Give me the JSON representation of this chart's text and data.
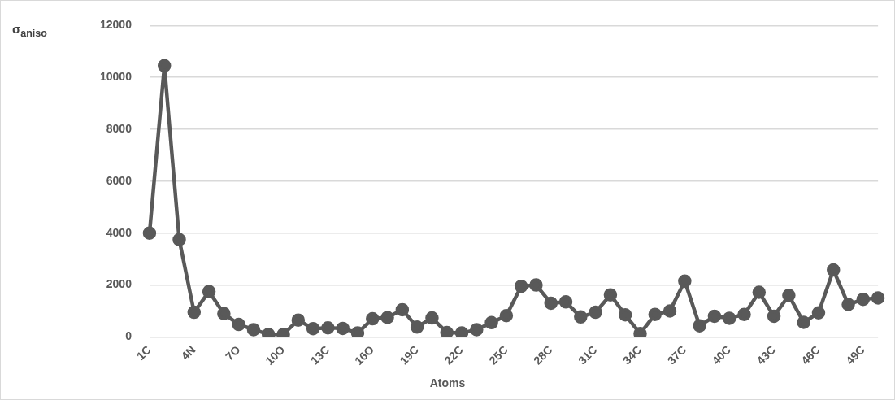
{
  "chart_data": {
    "type": "line",
    "ylabel": "σ$_{aniso}$",
    "xlabel": "Atoms",
    "categories": [
      "1C",
      null,
      null,
      "4N",
      null,
      null,
      "7O",
      null,
      null,
      "10O",
      null,
      null,
      "13C",
      null,
      null,
      "16O",
      null,
      null,
      "19C",
      null,
      null,
      "22C",
      null,
      null,
      "25C",
      null,
      null,
      "28C",
      null,
      null,
      "31C",
      null,
      null,
      "34C",
      null,
      null,
      "37C",
      null,
      null,
      "40C",
      null,
      null,
      "43C",
      null,
      null,
      "46C",
      null,
      null,
      "49C",
      null
    ],
    "series": [
      {
        "color": "#595959",
        "values": [
          4000,
          10450,
          3750,
          950,
          1750,
          900,
          480,
          280,
          100,
          100,
          650,
          320,
          350,
          330,
          150,
          700,
          750,
          1050,
          380,
          730,
          170,
          150,
          280,
          550,
          820,
          1950,
          2000,
          1300,
          1350,
          770,
          950,
          1620,
          850,
          130,
          870,
          1000,
          2150,
          430,
          800,
          720,
          870,
          1720,
          800,
          1600,
          560,
          930,
          2580,
          1250,
          1450,
          1500
        ]
      }
    ],
    "ylim": [
      0,
      12000
    ],
    "yticks": [
      0,
      2000,
      4000,
      6000,
      8000,
      10000,
      12000
    ],
    "grid": "y",
    "legend": false,
    "marker": "circle",
    "line_style": "solid"
  }
}
